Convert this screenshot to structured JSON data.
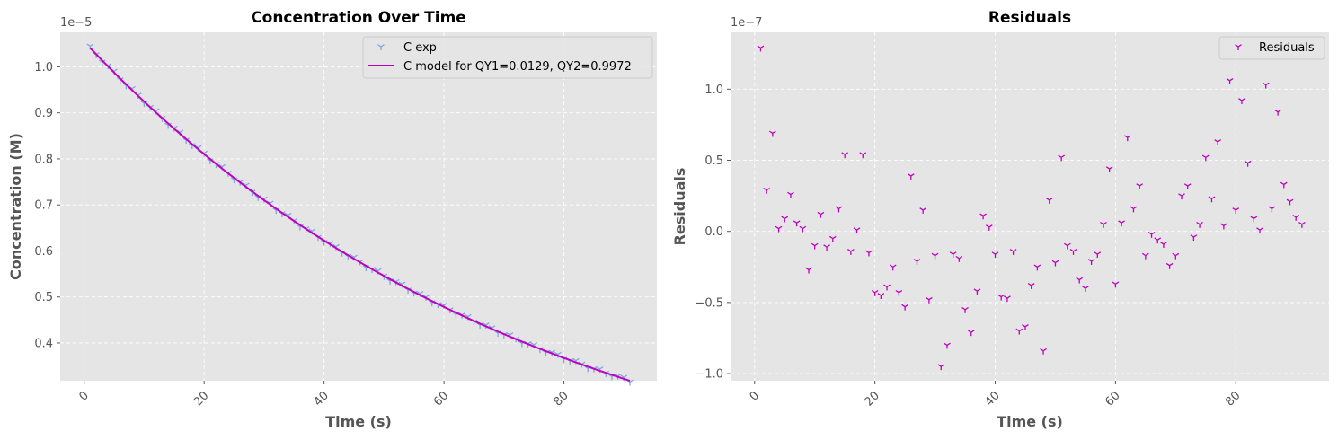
{
  "chart_data": [
    {
      "type": "scatter",
      "title": "Concentration Over Time",
      "xlabel": "Time (s)",
      "ylabel": "Concentration (M)",
      "offset_label": "1e−5",
      "xlim": [
        -4,
        95.5
      ],
      "ylim": [
        0.318,
        1.075
      ],
      "xticks": [
        0,
        20,
        40,
        60,
        80
      ],
      "yticks": [
        0.4,
        0.5,
        0.6,
        0.7,
        0.8,
        0.9,
        1.0
      ],
      "grid": true,
      "legend": "top-right",
      "series": [
        {
          "name": "C exp",
          "kind": "scatter",
          "color": "#7ea6e0",
          "model": {
            "a": 1.041,
            "b": 0.01318,
            "x_start": 1,
            "x_end": 91,
            "step": 1
          }
        },
        {
          "name": "C model for QY1=0.0129, QY2=0.9972",
          "kind": "line",
          "color": "#bf00bf",
          "model": {
            "a": 1.041,
            "b": 0.01318,
            "x_start": 1,
            "x_end": 91
          }
        }
      ]
    },
    {
      "type": "scatter",
      "title": "Residuals",
      "xlabel": "Time (s)",
      "ylabel": "Residuals",
      "offset_label": "1e−7",
      "xlim": [
        -4,
        95.5
      ],
      "ylim": [
        -1.05,
        1.4
      ],
      "xticks": [
        0,
        20,
        40,
        60,
        80
      ],
      "yticks": [
        -1.0,
        -0.5,
        0.0,
        0.5,
        1.0
      ],
      "grid": true,
      "legend": "top-right",
      "series": [
        {
          "name": "Residuals",
          "kind": "scatter",
          "color": "#bf00bf",
          "x": [
            1,
            2,
            3,
            4,
            5,
            6,
            7,
            8,
            9,
            10,
            11,
            12,
            13,
            14,
            15,
            16,
            17,
            18,
            19,
            20,
            21,
            22,
            23,
            24,
            25,
            26,
            27,
            28,
            29,
            30,
            31,
            32,
            33,
            34,
            35,
            36,
            37,
            38,
            39,
            40,
            41,
            42,
            43,
            44,
            45,
            46,
            47,
            48,
            49,
            50,
            51,
            52,
            53,
            54,
            55,
            56,
            57,
            58,
            59,
            60,
            61,
            62,
            63,
            64,
            65,
            66,
            67,
            68,
            69,
            70,
            71,
            72,
            73,
            74,
            75,
            76,
            77,
            78,
            79,
            80,
            81,
            82,
            83,
            84,
            85,
            86,
            87,
            88,
            89,
            90,
            91
          ],
          "y": [
            1.29,
            0.29,
            0.69,
            0.02,
            0.09,
            0.26,
            0.06,
            0.02,
            -0.27,
            -0.1,
            0.12,
            -0.11,
            -0.05,
            0.16,
            0.54,
            -0.14,
            0.01,
            0.54,
            -0.15,
            -0.43,
            -0.45,
            -0.39,
            -0.25,
            -0.43,
            -0.53,
            0.39,
            -0.21,
            0.15,
            -0.48,
            -0.17,
            -0.95,
            -0.8,
            -0.16,
            -0.19,
            -0.55,
            -0.71,
            -0.42,
            0.11,
            0.03,
            -0.16,
            -0.46,
            -0.47,
            -0.14,
            -0.7,
            -0.67,
            -0.38,
            -0.25,
            -0.84,
            0.22,
            -0.22,
            0.52,
            -0.1,
            -0.14,
            -0.34,
            -0.4,
            -0.21,
            -0.16,
            0.05,
            0.44,
            -0.37,
            0.06,
            0.66,
            0.16,
            0.32,
            -0.17,
            -0.02,
            -0.06,
            -0.09,
            -0.24,
            -0.17,
            0.25,
            0.32,
            -0.04,
            0.05,
            0.52,
            0.23,
            0.63,
            0.04,
            1.06,
            0.15,
            0.92,
            0.48,
            0.09,
            0.01,
            1.03,
            0.16,
            0.84,
            0.33,
            0.21,
            0.1,
            0.05
          ]
        }
      ]
    }
  ]
}
